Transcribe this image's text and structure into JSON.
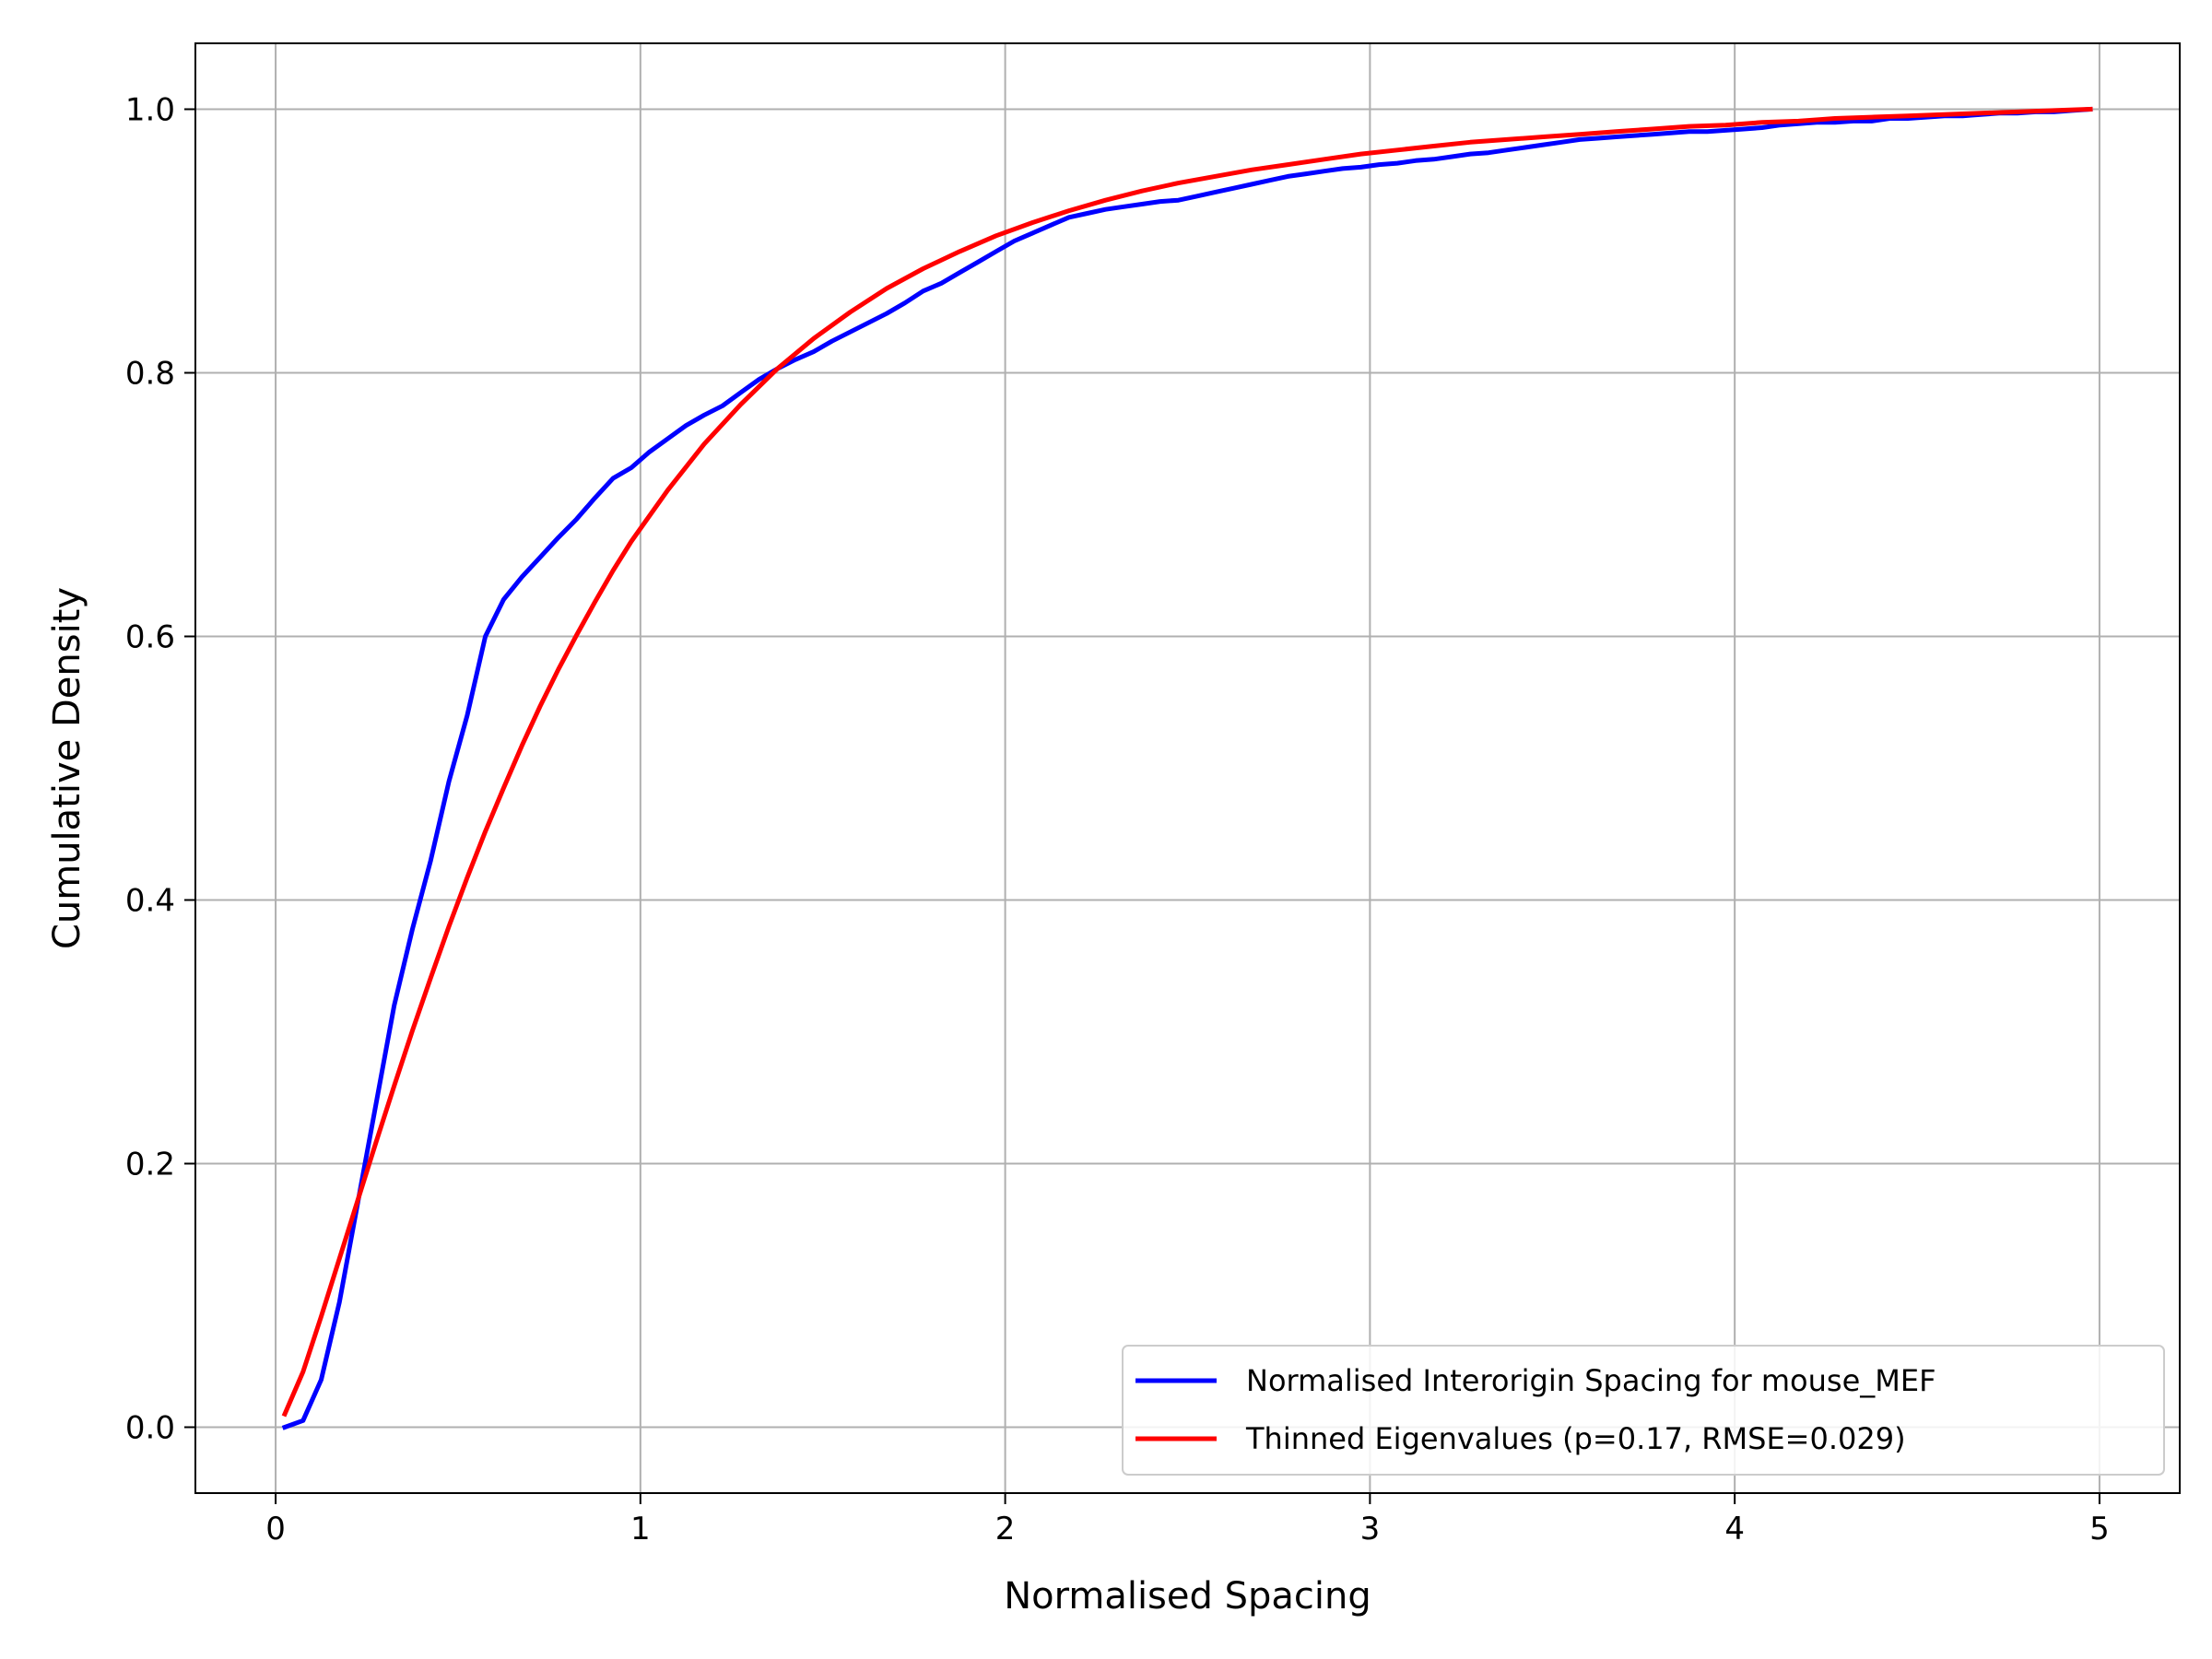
{
  "chart_data": {
    "type": "line",
    "title": "",
    "xlabel": "Normalised Spacing",
    "ylabel": "Cumulative Density",
    "xlim": [
      -0.22,
      5.22
    ],
    "ylim": [
      -0.05,
      1.05
    ],
    "xticks": [
      0,
      1,
      2,
      3,
      4,
      5
    ],
    "xtick_labels": [
      "0",
      "1",
      "2",
      "3",
      "4",
      "5"
    ],
    "yticks": [
      0.0,
      0.2,
      0.4,
      0.6,
      0.8,
      1.0
    ],
    "ytick_labels": [
      "0.0",
      "0.2",
      "0.4",
      "0.6",
      "0.8",
      "1.0"
    ],
    "grid": true,
    "legend_position": "bottom-right",
    "series": [
      {
        "name": "Normalised Interorigin Spacing for mouse_MEF",
        "color": "#0000ff",
        "x": [
          0.025,
          0.075,
          0.125,
          0.175,
          0.225,
          0.275,
          0.325,
          0.375,
          0.425,
          0.475,
          0.525,
          0.575,
          0.625,
          0.675,
          0.725,
          0.775,
          0.825,
          0.875,
          0.925,
          0.975,
          1.025,
          1.075,
          1.125,
          1.175,
          1.225,
          1.275,
          1.325,
          1.375,
          1.425,
          1.475,
          1.525,
          1.575,
          1.625,
          1.675,
          1.725,
          1.775,
          1.825,
          1.875,
          1.925,
          1.975,
          2.025,
          2.075,
          2.125,
          2.175,
          2.225,
          2.275,
          2.325,
          2.375,
          2.425,
          2.475,
          2.525,
          2.575,
          2.625,
          2.675,
          2.725,
          2.775,
          2.825,
          2.875,
          2.925,
          2.975,
          3.025,
          3.075,
          3.125,
          3.175,
          3.225,
          3.275,
          3.325,
          3.375,
          3.425,
          3.475,
          3.525,
          3.575,
          3.625,
          3.675,
          3.725,
          3.775,
          3.825,
          3.875,
          3.925,
          3.975,
          4.025,
          4.075,
          4.125,
          4.175,
          4.225,
          4.275,
          4.325,
          4.375,
          4.425,
          4.475,
          4.525,
          4.575,
          4.625,
          4.675,
          4.725,
          4.775,
          4.825,
          4.875,
          4.925,
          4.975
        ],
        "y": [
          0.0,
          0.005,
          0.036,
          0.095,
          0.17,
          0.245,
          0.32,
          0.378,
          0.43,
          0.49,
          0.54,
          0.6,
          0.628,
          0.645,
          0.66,
          0.675,
          0.689,
          0.705,
          0.72,
          0.728,
          0.74,
          0.75,
          0.76,
          0.768,
          0.775,
          0.785,
          0.795,
          0.803,
          0.81,
          0.816,
          0.824,
          0.831,
          0.838,
          0.845,
          0.853,
          0.862,
          0.868,
          0.876,
          0.884,
          0.892,
          0.9,
          0.906,
          0.912,
          0.918,
          0.921,
          0.924,
          0.926,
          0.928,
          0.93,
          0.931,
          0.934,
          0.937,
          0.94,
          0.943,
          0.946,
          0.949,
          0.951,
          0.953,
          0.955,
          0.956,
          0.958,
          0.959,
          0.961,
          0.962,
          0.964,
          0.966,
          0.967,
          0.969,
          0.971,
          0.973,
          0.975,
          0.977,
          0.978,
          0.979,
          0.98,
          0.981,
          0.982,
          0.983,
          0.983,
          0.984,
          0.985,
          0.986,
          0.988,
          0.989,
          0.99,
          0.99,
          0.991,
          0.991,
          0.993,
          0.993,
          0.994,
          0.995,
          0.995,
          0.996,
          0.997,
          0.997,
          0.998,
          0.998,
          0.999,
          1.0
        ]
      },
      {
        "name": "Thinned Eigenvalues (p=0.17, RMSE=0.029)",
        "color": "#ff0000",
        "x": [
          0.025,
          0.075,
          0.125,
          0.175,
          0.225,
          0.275,
          0.325,
          0.375,
          0.425,
          0.475,
          0.525,
          0.575,
          0.625,
          0.675,
          0.725,
          0.775,
          0.825,
          0.875,
          0.925,
          0.975,
          1.075,
          1.175,
          1.275,
          1.375,
          1.475,
          1.575,
          1.675,
          1.775,
          1.875,
          1.975,
          2.075,
          2.175,
          2.275,
          2.375,
          2.475,
          2.575,
          2.675,
          2.775,
          2.875,
          2.975,
          3.075,
          3.175,
          3.275,
          3.375,
          3.475,
          3.575,
          3.675,
          3.775,
          3.875,
          3.975,
          4.075,
          4.175,
          4.275,
          4.375,
          4.475,
          4.575,
          4.675,
          4.775,
          4.875,
          4.975
        ],
        "y": [
          0.01,
          0.042,
          0.084,
          0.128,
          0.172,
          0.216,
          0.259,
          0.301,
          0.341,
          0.38,
          0.417,
          0.452,
          0.485,
          0.517,
          0.547,
          0.575,
          0.601,
          0.626,
          0.65,
          0.672,
          0.711,
          0.746,
          0.776,
          0.803,
          0.826,
          0.846,
          0.864,
          0.879,
          0.892,
          0.904,
          0.914,
          0.923,
          0.931,
          0.938,
          0.944,
          0.949,
          0.954,
          0.958,
          0.962,
          0.966,
          0.969,
          0.972,
          0.975,
          0.977,
          0.979,
          0.981,
          0.983,
          0.985,
          0.987,
          0.988,
          0.99,
          0.991,
          0.993,
          0.994,
          0.995,
          0.996,
          0.997,
          0.998,
          0.999,
          1.0
        ]
      }
    ]
  }
}
